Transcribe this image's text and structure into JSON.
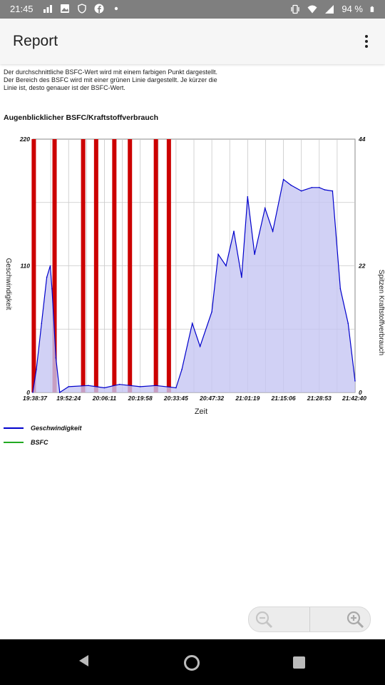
{
  "status_bar": {
    "time": "21:45",
    "battery": "94 %",
    "left_icons": [
      "grid-icon",
      "image-icon",
      "shield-icon",
      "facebook-icon",
      "dot-icon"
    ],
    "right_icons": [
      "vibrate-icon",
      "wifi-icon",
      "signal-icon",
      "battery-icon"
    ]
  },
  "app_bar": {
    "title": "Report"
  },
  "intro": {
    "line1": "Der durchschnittliche BSFC-Wert wird mit einem farbigen Punkt dargestellt.",
    "line2": "Der Bereich des BSFC wird mit einer grünen Linie dargestellt. Je kürzer die",
    "line3": "Linie ist, desto genauer ist der BSFC-Wert."
  },
  "chart_title": "Augenblicklicher BSFC/Kraftstoffverbrauch",
  "chart_data": {
    "type": "line",
    "title": "Augenblicklicher BSFC/Kraftstoffverbrauch",
    "xlabel": "Zeit",
    "ylabel": "Geschwindigkeit",
    "ylabel_right": "Spitzen Kraftstoffverbrauch",
    "x_tick_labels": [
      "19:38:37",
      "19:52:24",
      "20:06:11",
      "20:19:58",
      "20:33:45",
      "20:47:32",
      "21:01:19",
      "21:15:06",
      "21:28:53",
      "21:42:40"
    ],
    "y_left_ticks": [
      "0",
      "110",
      "220"
    ],
    "y_right_ticks": [
      "0",
      "22",
      "44"
    ],
    "ylim": [
      0,
      220
    ],
    "ylim_right": [
      0,
      44
    ],
    "grid": true,
    "legend_position": "bottom-left",
    "series": [
      {
        "name": "Geschwindigkeit",
        "color": "#0000cc",
        "fill": "#c6c6f2",
        "x": [
          "19:38:37",
          "19:40:00",
          "19:42:00",
          "19:44:00",
          "19:45:20",
          "19:46:00",
          "19:47:30",
          "19:49:00",
          "19:52:24",
          "20:00:00",
          "20:06:11",
          "20:12:00",
          "20:19:58",
          "20:26:00",
          "20:33:45",
          "20:36:00",
          "20:40:00",
          "20:43:00",
          "20:47:32",
          "20:50:00",
          "20:53:00",
          "20:56:00",
          "20:59:00",
          "21:01:19",
          "21:04:00",
          "21:08:00",
          "21:11:00",
          "21:15:06",
          "21:18:00",
          "21:22:00",
          "21:26:00",
          "21:28:53",
          "21:31:00",
          "21:34:00",
          "21:37:00",
          "21:40:00",
          "21:42:40"
        ],
        "values": [
          0,
          20,
          60,
          100,
          110,
          90,
          30,
          0,
          5,
          6,
          4,
          7,
          5,
          6,
          4,
          20,
          60,
          40,
          70,
          120,
          110,
          140,
          100,
          170,
          120,
          160,
          140,
          185,
          180,
          175,
          178,
          178,
          176,
          175,
          90,
          60,
          10
        ]
      },
      {
        "name": "BSFC",
        "color": "#22aa22",
        "values": []
      }
    ],
    "fuel_bars": {
      "axis": "right",
      "color": "#cc0000",
      "x": [
        "19:39:00",
        "19:47:00",
        "19:58:00",
        "20:03:00",
        "20:10:00",
        "20:16:00",
        "20:26:00",
        "20:31:00"
      ],
      "values": [
        44,
        44,
        44,
        44,
        44,
        44,
        44,
        44
      ]
    }
  },
  "legend": [
    {
      "label": "Geschwindigkeit",
      "color": "#0000cc"
    },
    {
      "label": "BSFC",
      "color": "#22aa22"
    }
  ],
  "zoom_controls": {
    "zoom_out_icon": "zoom-out-icon",
    "zoom_in_icon": "zoom-in-icon"
  },
  "nav_bar": {
    "icons": [
      "back-icon",
      "home-icon",
      "recents-icon"
    ]
  }
}
